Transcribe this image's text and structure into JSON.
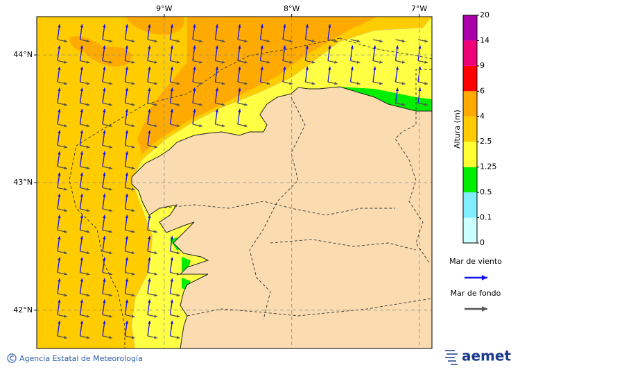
{
  "map": {
    "lon_ticks": [
      {
        "value": -9,
        "label": "9°W"
      },
      {
        "value": -8,
        "label": "8°W"
      },
      {
        "value": -7,
        "label": "7°W"
      }
    ],
    "lat_ticks": [
      {
        "value": 44,
        "label": "44°N"
      },
      {
        "value": 43,
        "label": "43°N"
      },
      {
        "value": 42,
        "label": "42°N"
      }
    ],
    "lon_range": [
      -10,
      -6.9
    ],
    "lat_range": [
      41.7,
      44.3
    ]
  },
  "colorbar": {
    "title": "Altura (m)",
    "levels": [
      0,
      0.1,
      0.5,
      1.25,
      2.5,
      4,
      6,
      9,
      14,
      20
    ],
    "colors": [
      "#ccffff",
      "#80eeff",
      "#00ee00",
      "#ffff33",
      "#ffcc00",
      "#ffaa00",
      "#ff0000",
      "#ee0077",
      "#aa00aa"
    ]
  },
  "legend": {
    "wind_sea": {
      "label": "Mar de viento",
      "color": "#1010ee"
    },
    "swell": {
      "label": "Mar de fondo",
      "color": "#555555"
    }
  },
  "footer": {
    "credit": "Agencia Estatal de Meteorología",
    "logo": "aemet"
  }
}
